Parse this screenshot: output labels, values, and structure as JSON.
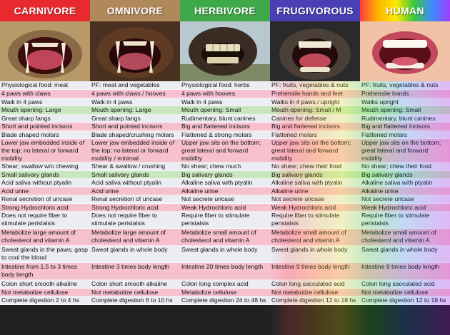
{
  "colors": {
    "carnivore": "#e8292e",
    "omnivore": "#b0895a",
    "herbivore": "#3fa94a",
    "frugivorous": "#4a3fb5",
    "human": "#f0a0a0"
  },
  "columns": [
    {
      "id": "carnivore",
      "title": "CARNIVORE",
      "image": "lion-teeth",
      "rows": [
        "Physiological food: meat",
        "4 paws with claws",
        "Walk in 4 paws",
        "Mouth opening: Large",
        "Great sharp fangs",
        "Short and pointed incisors",
        "Blade shaped molars",
        "Lower jaw embedded inside of the top; no lateral or forward mobility",
        "Shear; swallow w/o chewing",
        "Small salivary glands",
        "Acid saliva without ptyalin",
        "Acid urine",
        "Renal secretion of uricase",
        "Strong Hydrochloric acid",
        "Does not require fiber to stimulate peristalsis",
        "Metabolize large amount of cholesterol and vitamin A",
        "Sweat glands in the paws; gasp to cool the blood",
        "Intestine from 1.5 to 3 times body length",
        "Colon short smooth alkaline",
        "Not metabolize cellulose",
        "Complete digestion 2 to 4 hs"
      ]
    },
    {
      "id": "omnivore",
      "title": "OMNIVORE",
      "image": "bear-teeth",
      "rows": [
        "PF: meat and vegetables",
        "4 paws with claws / hooves",
        "Walk in 4 paws",
        "Mouth opening: Large",
        "Great sharp fangs",
        "Short and pointed incisors",
        "Blade shaped/crushing molars",
        "Lower jaw embedded inside of the top; no lateral or forward mobility / minimal",
        "Shear & swallow / crushing",
        "Small salivary glands",
        "Acid saliva without ptyalin",
        "Acid urine",
        "Renal secretion of uricase",
        "Strong Hydrochloric acid",
        "Does not require fiber to stimulate peristalsis",
        "Metabolize large amount of cholesterol and vitamin A",
        "Sweat glands in whole body",
        "Intestine 3 times body length",
        "Colon short smooth alkaline",
        "Not metabolize cellulose",
        "Complete digestion 6 to 10 hs"
      ]
    },
    {
      "id": "herbivore",
      "title": "HERBIVORE",
      "image": "horse-teeth",
      "rows": [
        "Physiological food: herbs",
        "4 paws with hooves",
        "Walk in 4 paws",
        "Mouth opening: Small",
        "Rudimentary, blunt canines",
        "Big and flattened incisors",
        "Flattened & strong molars",
        "Upper jaw sits on the bottom; great lateral and forward mobility",
        "No shear; chew much",
        "Big salivary glands",
        "Alkaline saliva with ptyalin",
        "Alkaline urine",
        "Not secrete uricase",
        "Weak Hydrochloric acid",
        "Require fiber to stimulate peristalsis",
        "Metabolize small amount of cholesterol and vitamin A",
        "Sweat glands in whole body",
        "Intestine 20 times body length",
        "Colon long complex acid",
        "Metabolize cellulose",
        "Complete digestion 24 to 48 hs"
      ]
    },
    {
      "id": "frugivorous",
      "title": "FRUGIVOROUS",
      "image": "chimp-teeth",
      "rows": [
        "PF: fruits, vegetables & nuts",
        "Prehensile hands and feet",
        "Walks in 4 paws / upright",
        "Mouth opening: Small / M",
        "Canines for defense",
        "Big and flattened incisors",
        "Flattened molars",
        "Upper jaw sits on the bottom; great lateral and forward mobility",
        "No shear; chew their food",
        "Big salivary glands",
        "Alkaline saliva with ptyalin",
        "Alkaline urine",
        "Not secrete uricase",
        "Weak Hydrochloric acid",
        "Require fiber to stimulate peristalsis",
        "Metabolize small amount of cholesterol and vitamin A",
        "Sweat glands in whole body",
        "Intestine 9 times body length",
        "Colon long sacculated acid",
        "Not metabolize cellulose",
        "Complete digestion 12 to 18 hs"
      ]
    },
    {
      "id": "human",
      "title": "HUMAN",
      "image": "human-mouth",
      "rows": [
        "PF: fruits, vegetables & nuts",
        "Prehensile hands",
        "Walks upright",
        "Mouth opening: Small",
        "Rudimentary, blunt canines",
        "Big and flattened incisors",
        "Flattened molars",
        "Upper jaw sits on the bottom; great lateral and forward mobility",
        "No shear; chew their food",
        "Big salivary glands",
        "Alkaline saliva with ptyalin",
        "Alkaline urine",
        "Not secrete uricase",
        "Weak Hydrochloric acid",
        "Require fiber to stimulate peristalsis",
        "Metabolize small amount of cholesterol and vitamin A",
        "Sweat glands in whole body",
        "Intestine 9 times body length",
        "Colon long sacculated acid",
        "Not metabolize cellulose",
        "Complete digestion 12 to 18 hs"
      ]
    }
  ]
}
